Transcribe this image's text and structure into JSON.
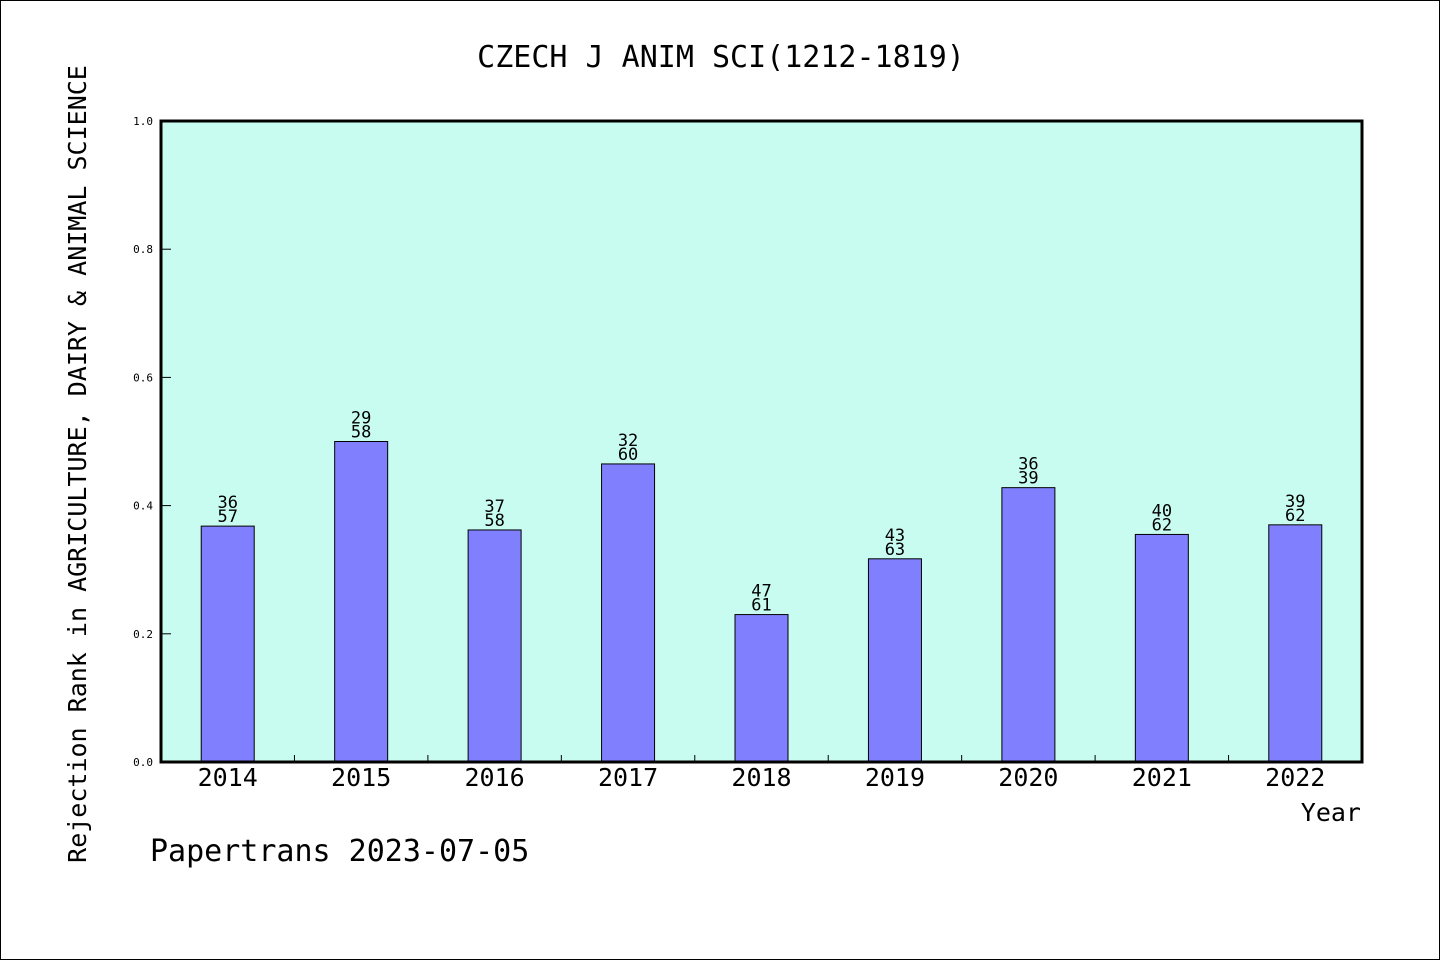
{
  "chart_data": {
    "type": "bar",
    "title": "CZECH J ANIM SCI(1212-1819)",
    "xlabel": "Year",
    "ylabel": "Rejection Rank in AGRICULTURE, DAIRY & ANIMAL SCIENCE",
    "categories": [
      "2014",
      "2015",
      "2016",
      "2017",
      "2018",
      "2019",
      "2020",
      "2021",
      "2022"
    ],
    "values": [
      0.368,
      0.5,
      0.362,
      0.465,
      0.23,
      0.317,
      0.428,
      0.355,
      0.37
    ],
    "bar_labels_top": [
      "36",
      "29",
      "37",
      "32",
      "47",
      "43",
      "36",
      "40",
      "39"
    ],
    "bar_labels_bottom": [
      "57",
      "58",
      "58",
      "60",
      "61",
      "63",
      "39",
      "62",
      "62"
    ],
    "ylim": [
      0.0,
      1.0
    ],
    "yticks": [
      "0.0",
      "0.2",
      "0.4",
      "0.6",
      "0.8",
      "1.0"
    ],
    "colors": {
      "plot_background": "#c8fcf0",
      "bar_fill": "#8080ff",
      "bar_edge": "#000000"
    },
    "grid": false,
    "legend": "none"
  },
  "footer": {
    "credit": "Papertrans 2023-07-05"
  }
}
